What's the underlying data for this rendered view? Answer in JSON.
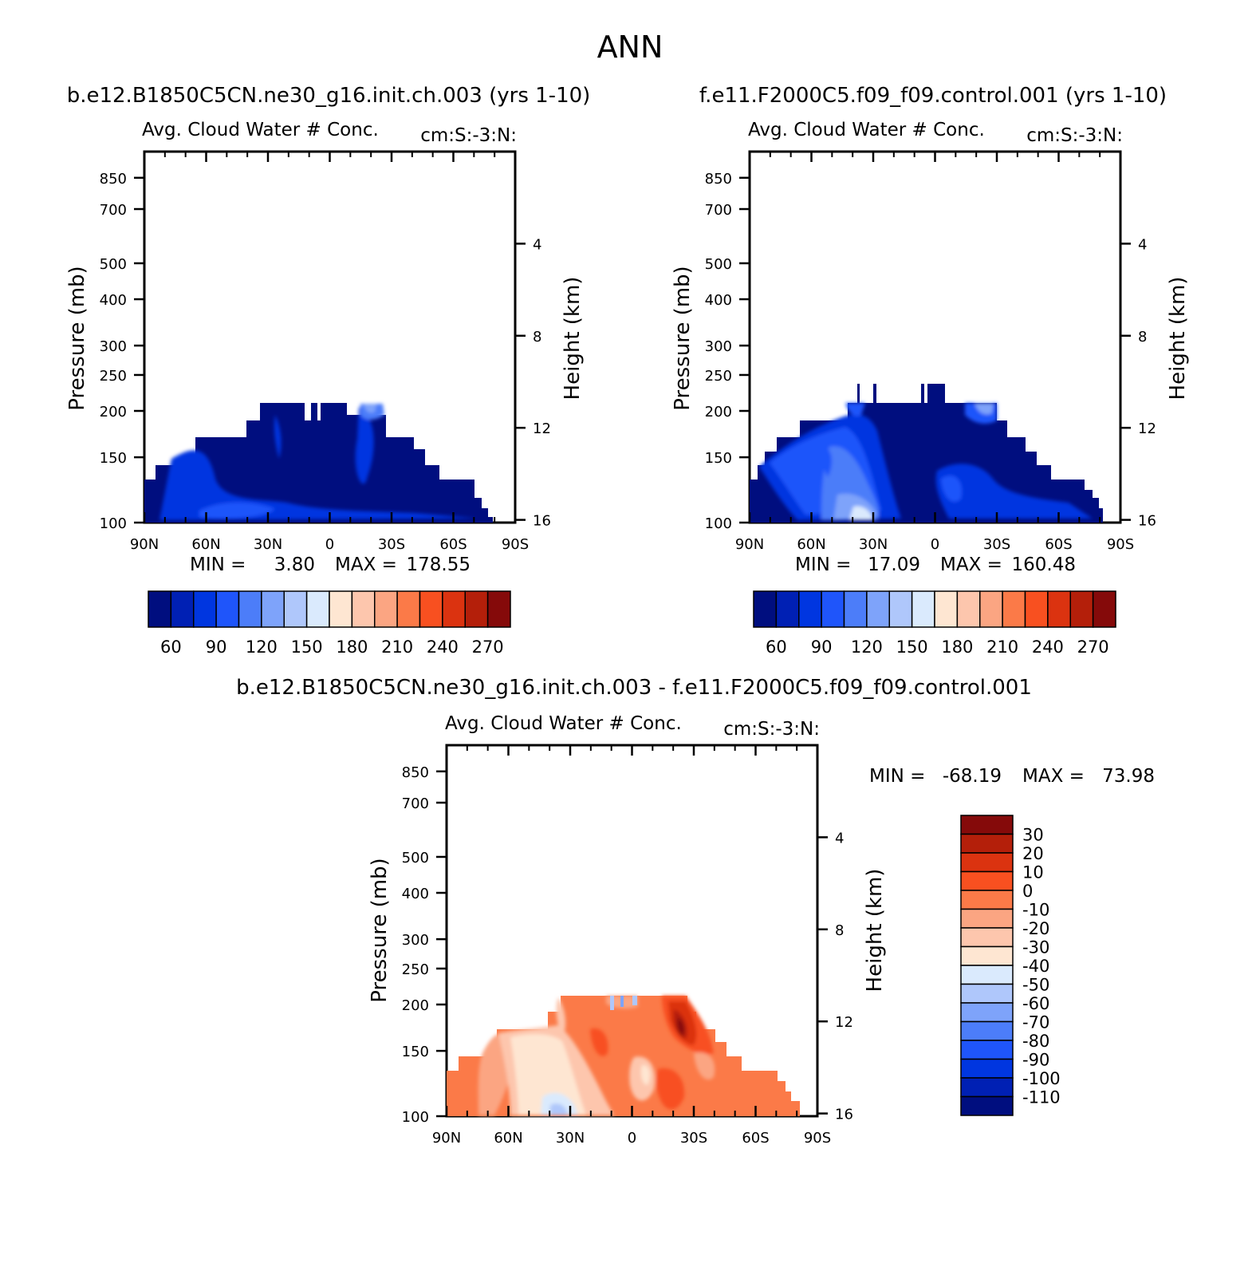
{
  "figure": {
    "title": "ANN",
    "diff_title": "b.e12.B1850C5CN.ne30_g16.init.ch.003 - f.e11.F2000C5.f09_f09.control.001"
  },
  "chart_data": [
    {
      "type": "heatmap",
      "case_title": "b.e12.B1850C5CN.ne30_g16.init.ch.003 (yrs 1-10)",
      "title": "Avg. Cloud Water # Conc.",
      "units": "cm:S:-3:N:",
      "ylabel": "Pressure (mb)",
      "y2label": "Height (km)",
      "xticks": [
        "90N",
        "60N",
        "30N",
        "0",
        "30S",
        "60S",
        "90S"
      ],
      "yticks": [
        100,
        150,
        200,
        250,
        300,
        400,
        500,
        700,
        850
      ],
      "y2ticks": [
        16,
        12,
        8,
        4
      ],
      "ylim": [
        1000,
        100
      ],
      "xlim": [
        "90N",
        "90S"
      ],
      "min_label": "MIN =",
      "min_value": "3.80",
      "max_label": "MAX =",
      "max_value": "178.55",
      "field_min": 3.8,
      "field_max": 178.55,
      "colorbar_levels": [
        "60",
        "90",
        "120",
        "150",
        "180",
        "210",
        "240",
        "270"
      ],
      "colorbar_colors": [
        "#000e7f",
        "#0020b4",
        "#0036e0",
        "#1f55fa",
        "#4c7df9",
        "#7ea3fa",
        "#afc7fb",
        "#daeafd",
        "#fee6d2",
        "#fdc6ad",
        "#fba582",
        "#fb7a48",
        "#f85020",
        "#db3310",
        "#b41f0a",
        "#850a0a"
      ]
    },
    {
      "type": "heatmap",
      "case_title": "f.e11.F2000C5.f09_f09.control.001 (yrs 1-10)",
      "title": "Avg. Cloud Water # Conc.",
      "units": "cm:S:-3:N:",
      "ylabel": "Pressure (mb)",
      "y2label": "Height (km)",
      "xticks": [
        "90N",
        "60N",
        "30N",
        "0",
        "30S",
        "60S",
        "90S"
      ],
      "yticks": [
        100,
        150,
        200,
        250,
        300,
        400,
        500,
        700,
        850
      ],
      "y2ticks": [
        16,
        12,
        8,
        4
      ],
      "ylim": [
        1000,
        100
      ],
      "xlim": [
        "90N",
        "90S"
      ],
      "min_label": "MIN =",
      "min_value": "17.09",
      "max_label": "MAX =",
      "max_value": "160.48",
      "field_min": 17.09,
      "field_max": 160.48,
      "colorbar_levels": [
        "60",
        "90",
        "120",
        "150",
        "180",
        "210",
        "240",
        "270"
      ],
      "colorbar_colors": [
        "#000e7f",
        "#0020b4",
        "#0036e0",
        "#1f55fa",
        "#4c7df9",
        "#7ea3fa",
        "#afc7fb",
        "#daeafd",
        "#fee6d2",
        "#fdc6ad",
        "#fba582",
        "#fb7a48",
        "#f85020",
        "#db3310",
        "#b41f0a",
        "#850a0a"
      ]
    },
    {
      "type": "heatmap",
      "title": "Avg. Cloud Water # Conc.",
      "units": "cm:S:-3:N:",
      "ylabel": "Pressure (mb)",
      "y2label": "Height (km)",
      "xticks": [
        "90N",
        "60N",
        "30N",
        "0",
        "30S",
        "60S",
        "90S"
      ],
      "yticks": [
        100,
        150,
        200,
        250,
        300,
        400,
        500,
        700,
        850
      ],
      "y2ticks": [
        16,
        12,
        8,
        4
      ],
      "ylim": [
        1000,
        100
      ],
      "xlim": [
        "90N",
        "90S"
      ],
      "min_label": "MIN =",
      "min_value": "-68.19",
      "max_label": "MAX =",
      "max_value": "73.98",
      "field_min": -68.19,
      "field_max": 73.98,
      "colorbar_levels": [
        "30",
        "20",
        "10",
        "0",
        "-10",
        "-20",
        "-30",
        "-40",
        "-50",
        "-60",
        "-70",
        "-80",
        "-90",
        "-100",
        "-110"
      ],
      "colorbar_colors": [
        "#850a0a",
        "#b41f0a",
        "#db3310",
        "#f85020",
        "#fb7a48",
        "#fba582",
        "#fdc6ad",
        "#fee6d2",
        "#daeafd",
        "#afc7fb",
        "#7ea3fa",
        "#4c7df9",
        "#1f55fa",
        "#0036e0",
        "#0020b4",
        "#000e7f"
      ]
    }
  ]
}
